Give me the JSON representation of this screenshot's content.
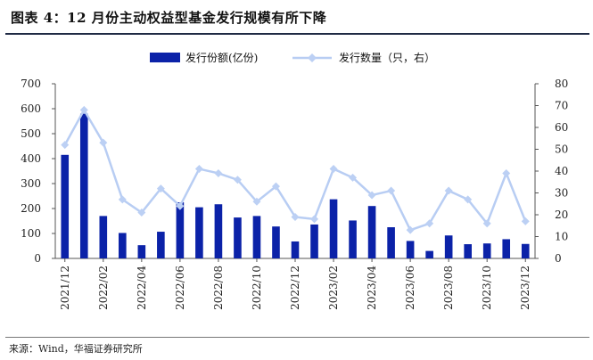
{
  "title": "图表 4：12 月份主动权益型基金发行规模有所下降",
  "source": "来源：Wind，华福证券研究所",
  "colors": {
    "bar": "#0b22a8",
    "line": "#b8cdf3",
    "marker": "#bcd0f4",
    "axis": "#555555"
  },
  "chart_data": {
    "type": "bar",
    "x_tick_labels": [
      "2021/12",
      "2022/02",
      "2022/04",
      "2022/06",
      "2022/08",
      "2022/10",
      "2022/12",
      "2023/02",
      "2023/04",
      "2023/06",
      "2023/08",
      "2023/10",
      "2023/12"
    ],
    "categories": [
      "2021/12",
      "2022/01",
      "2022/02",
      "2022/03",
      "2022/04",
      "2022/05",
      "2022/06",
      "2022/07",
      "2022/08",
      "2022/09",
      "2022/10",
      "2022/11",
      "2022/12",
      "2023/01",
      "2023/02",
      "2023/03",
      "2023/04",
      "2023/05",
      "2023/06",
      "2023/07",
      "2023/08",
      "2023/09",
      "2023/10",
      "2023/11",
      "2023/12"
    ],
    "series": [
      {
        "name": "发行份额(亿份)",
        "type": "bar",
        "axis": "left",
        "values": [
          415,
          580,
          170,
          102,
          53,
          107,
          225,
          205,
          217,
          164,
          170,
          128,
          68,
          136,
          237,
          152,
          210,
          125,
          70,
          30,
          92,
          57,
          60,
          77,
          58
        ]
      },
      {
        "name": "发行数量（只，右）",
        "type": "line",
        "axis": "right",
        "values": [
          52,
          68,
          53,
          27,
          21,
          32,
          24,
          41,
          39,
          36,
          26,
          33,
          19,
          18,
          41,
          37,
          29,
          31,
          13,
          16,
          31,
          27,
          16,
          39,
          17
        ]
      }
    ],
    "y_left": {
      "min": 0,
      "max": 700,
      "ticks": [
        0,
        100,
        200,
        300,
        400,
        500,
        600,
        700
      ]
    },
    "y_right": {
      "min": 0,
      "max": 80,
      "ticks": [
        0,
        10,
        20,
        30,
        40,
        50,
        60,
        70,
        80
      ]
    },
    "legend_position": "top-center",
    "grid": false
  }
}
